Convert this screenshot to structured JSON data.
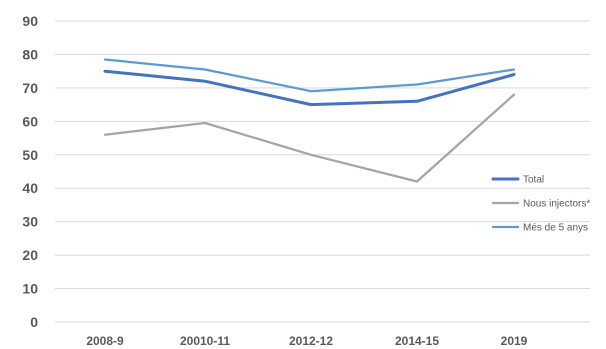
{
  "chart_data": {
    "type": "line",
    "title": "",
    "xlabel": "",
    "ylabel": "",
    "categories": [
      "2008-9",
      "20010-11",
      "2012-12",
      "2014-15",
      "2019"
    ],
    "ylim": [
      0,
      90
    ],
    "yticks": [
      0,
      10,
      20,
      30,
      40,
      50,
      60,
      70,
      80,
      90
    ],
    "grid": true,
    "legend_position": "right",
    "series": [
      {
        "name": "Total",
        "values": [
          75,
          72,
          65,
          66,
          74
        ],
        "color": "#4472c4"
      },
      {
        "name": "Nous injectors*",
        "values": [
          56,
          59.5,
          50,
          42,
          68
        ],
        "color": "#a5a5a5"
      },
      {
        "name": "Més de 5 anys",
        "values": [
          78.5,
          75.5,
          69,
          71,
          75.5
        ],
        "color": "#5b9bd5"
      }
    ]
  }
}
